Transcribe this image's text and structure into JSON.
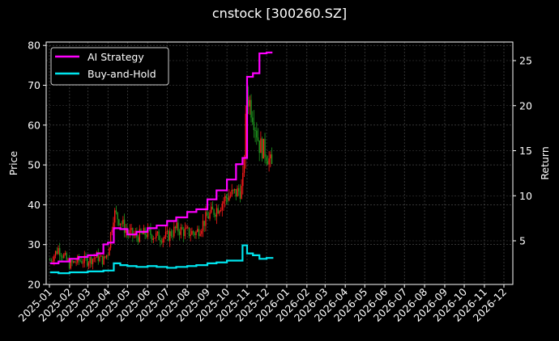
{
  "chart_data": {
    "type": "line",
    "title": "cnstock [300260.SZ]",
    "xlabel": "",
    "ylabel": "Price",
    "y2label": "Return",
    "ylim": [
      20,
      80
    ],
    "y2lim": [
      0.3,
      26.8
    ],
    "yticks": [
      20,
      30,
      40,
      50,
      60,
      70,
      80
    ],
    "y2ticks": [
      5,
      10,
      15,
      20,
      25
    ],
    "grid": true,
    "legend_position": "upper left",
    "background": "#000000",
    "x_tick_labels": [
      "2025-01",
      "2025-02",
      "2025-03",
      "2025-04",
      "2025-05",
      "2025-06",
      "2025-07",
      "2025-08",
      "2025-09",
      "2025-10",
      "2025-11",
      "2025-12",
      "2026-01",
      "2026-02",
      "2026-03",
      "2026-04",
      "2026-05",
      "2026-06",
      "2026-07",
      "2026-08",
      "2026-09",
      "2026-10",
      "2026-11",
      "2026-12"
    ],
    "x": [
      "2025-01-02",
      "2025-01-15",
      "2025-02-01",
      "2025-02-15",
      "2025-03-01",
      "2025-03-15",
      "2025-03-25",
      "2025-04-01",
      "2025-04-10",
      "2025-04-20",
      "2025-05-01",
      "2025-05-15",
      "2025-06-01",
      "2025-06-15",
      "2025-07-01",
      "2025-07-15",
      "2025-08-01",
      "2025-08-15",
      "2025-09-01",
      "2025-09-15",
      "2025-10-01",
      "2025-10-15",
      "2025-10-25",
      "2025-11-01",
      "2025-11-10",
      "2025-11-20",
      "2025-12-01",
      "2025-12-10"
    ],
    "series": [
      {
        "name": "AI Strategy",
        "color": "#ff00ff",
        "axis": "right",
        "values": [
          2.5,
          2.7,
          3.0,
          3.2,
          3.4,
          3.6,
          4.6,
          4.8,
          6.4,
          6.3,
          5.7,
          6.0,
          6.4,
          6.7,
          7.2,
          7.6,
          8.2,
          8.5,
          9.6,
          10.6,
          11.8,
          13.5,
          14.2,
          23.2,
          23.6,
          25.8,
          25.9,
          25.9
        ]
      },
      {
        "name": "Buy-and-Hold",
        "color": "#00e5ee",
        "axis": "right",
        "values": [
          1.5,
          1.4,
          1.5,
          1.5,
          1.6,
          1.6,
          1.7,
          1.7,
          2.5,
          2.3,
          2.2,
          2.1,
          2.2,
          2.1,
          2.0,
          2.1,
          2.2,
          2.3,
          2.5,
          2.6,
          2.8,
          2.8,
          4.5,
          3.6,
          3.4,
          3.0,
          3.1,
          3.0
        ]
      },
      {
        "name": "Price (candles)",
        "color_up": "#ff1a1a",
        "color_down": "#1f9a1f",
        "axis": "left",
        "values": [
          26,
          29,
          25,
          26,
          26,
          27,
          26,
          28,
          38,
          36,
          33,
          32,
          33,
          32,
          32,
          34,
          33,
          33,
          37,
          39,
          42,
          43,
          44,
          68,
          63,
          55,
          53,
          49
        ]
      }
    ]
  },
  "legend": {
    "items": [
      {
        "label": "AI Strategy",
        "color": "#ff00ff"
      },
      {
        "label": "Buy-and-Hold",
        "color": "#00e5ee"
      }
    ]
  }
}
